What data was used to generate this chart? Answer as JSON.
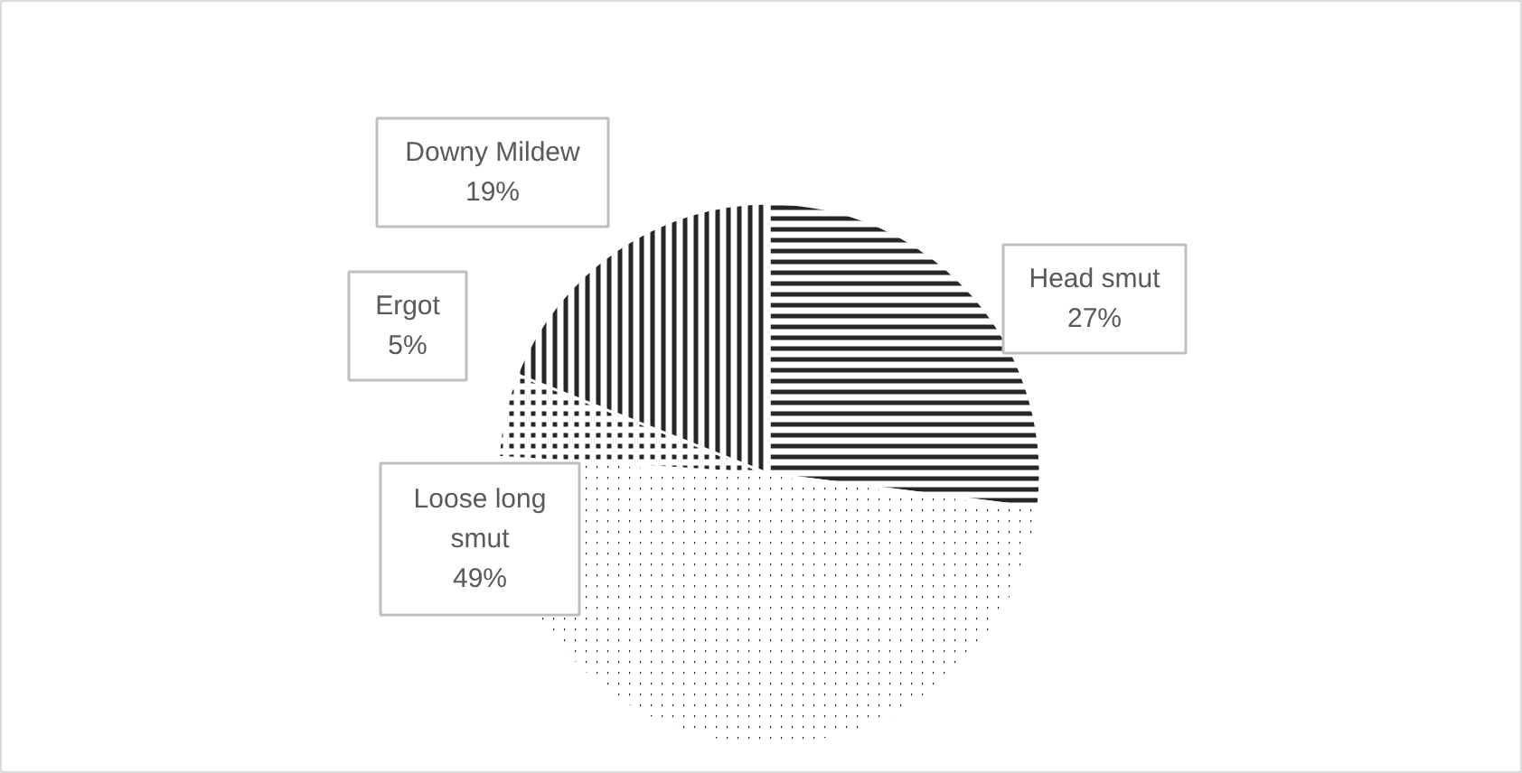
{
  "chart_data": {
    "type": "pie",
    "categories": [
      "Head smut",
      "Loose long smut",
      "Ergot",
      "Downy Mildew"
    ],
    "values": [
      27,
      49,
      5,
      19
    ],
    "value_labels": [
      "27%",
      "49%",
      "5%",
      "19%"
    ],
    "colors": [
      "#262626",
      "#262626",
      "#262626",
      "#262626"
    ]
  }
}
